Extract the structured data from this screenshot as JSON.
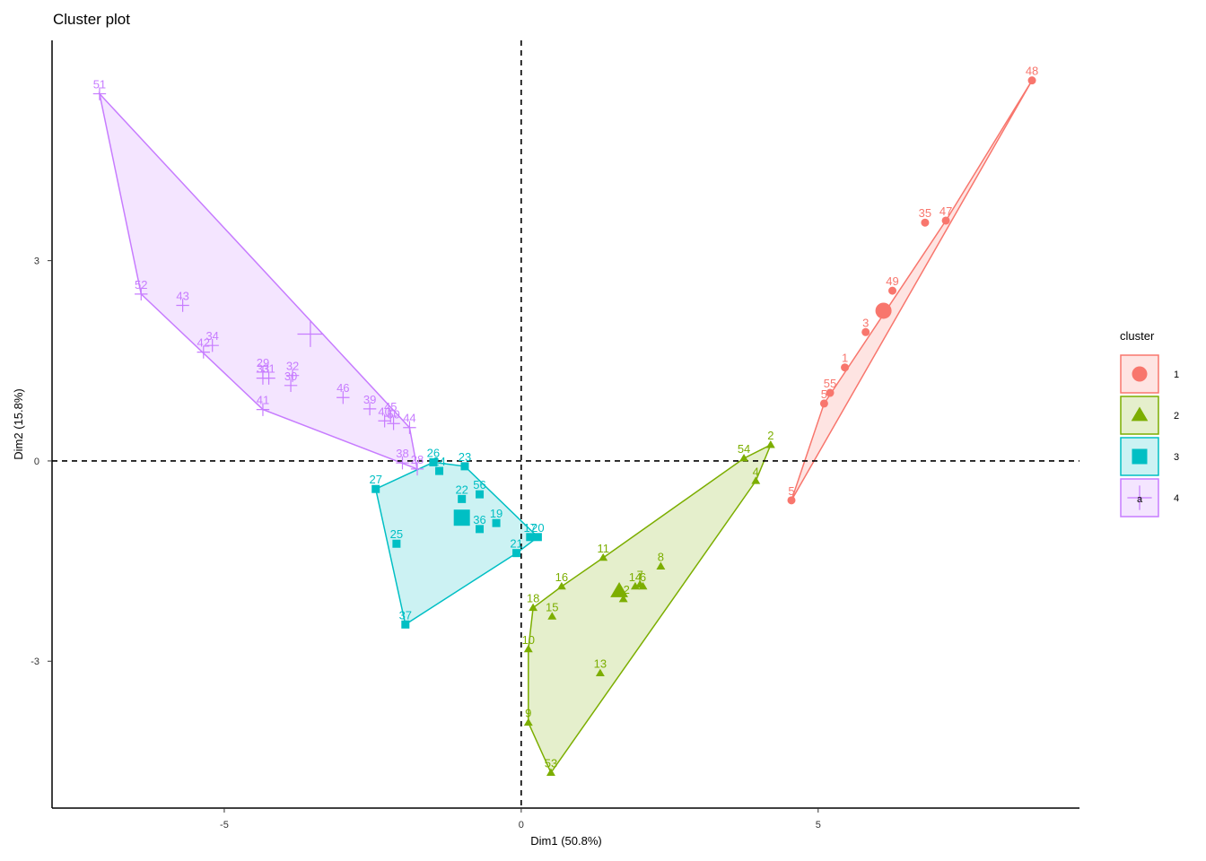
{
  "chart_data": {
    "type": "scatter",
    "title": "Cluster plot",
    "xlabel": "Dim1 (50.8%)",
    "ylabel": "Dim2 (15.8%)",
    "xlim": [
      -7.9,
      9.4
    ],
    "ylim": [
      -5.2,
      6.3
    ],
    "x_ticks": [
      -5,
      0,
      5
    ],
    "y_ticks": [
      -3,
      0,
      3
    ],
    "x_tick_labels": [
      "-5",
      "0",
      "5"
    ],
    "y_tick_labels": [
      "-3",
      "0",
      "3"
    ],
    "reference_lines": {
      "x": 0,
      "y": 0,
      "style": "dashed"
    },
    "legend": {
      "title": "cluster",
      "position": "right"
    },
    "clusters": [
      {
        "name": "1",
        "color": "#F8766D",
        "fill": "#F8766D",
        "shape": "circle",
        "centroid": [
          6.1,
          2.25
        ],
        "points": [
          {
            "label": "48",
            "x": 8.6,
            "y": 5.7
          },
          {
            "label": "47",
            "x": 7.15,
            "y": 3.6
          },
          {
            "label": "35",
            "x": 6.8,
            "y": 3.57
          },
          {
            "label": "49",
            "x": 6.25,
            "y": 2.55
          },
          {
            "label": "3",
            "x": 5.8,
            "y": 1.93
          },
          {
            "label": "1",
            "x": 5.45,
            "y": 1.4
          },
          {
            "label": "55",
            "x": 5.2,
            "y": 1.02
          },
          {
            "label": "5",
            "x": 5.1,
            "y": 0.86
          },
          {
            "label": "5",
            "x": 4.55,
            "y": -0.59
          }
        ],
        "hull": [
          "48",
          "47",
          "5",
          "5",
          "48"
        ]
      },
      {
        "name": "2",
        "color": "#7CAE00",
        "fill": "#7CAE00",
        "shape": "triangle",
        "centroid": [
          1.65,
          -1.95
        ],
        "points": [
          {
            "label": "2",
            "x": 4.2,
            "y": 0.24
          },
          {
            "label": "54",
            "x": 3.75,
            "y": 0.04
          },
          {
            "label": "4",
            "x": 3.95,
            "y": -0.3
          },
          {
            "label": "11",
            "x": 1.38,
            "y": -1.45
          },
          {
            "label": "8",
            "x": 2.35,
            "y": -1.58
          },
          {
            "label": "16",
            "x": 0.68,
            "y": -1.88
          },
          {
            "label": "14",
            "x": 1.92,
            "y": -1.88
          },
          {
            "label": "7",
            "x": 2.0,
            "y": -1.85
          },
          {
            "label": "6",
            "x": 2.05,
            "y": -1.88
          },
          {
            "label": "12",
            "x": 1.72,
            "y": -2.07
          },
          {
            "label": "18",
            "x": 0.2,
            "y": -2.2
          },
          {
            "label": "15",
            "x": 0.52,
            "y": -2.33
          },
          {
            "label": "10",
            "x": 0.12,
            "y": -2.82
          },
          {
            "label": "13",
            "x": 1.33,
            "y": -3.18
          },
          {
            "label": "9",
            "x": 0.12,
            "y": -3.92
          },
          {
            "label": "53",
            "x": 0.5,
            "y": -4.67
          }
        ],
        "hull": [
          "2",
          "54",
          "11",
          "16",
          "18",
          "10",
          "9",
          "53",
          "4"
        ]
      },
      {
        "name": "3",
        "color": "#00BFC4",
        "fill": "#00BFC4",
        "shape": "square",
        "centroid": [
          -1.0,
          -0.85
        ],
        "points": [
          {
            "label": "26",
            "x": -1.48,
            "y": -0.02
          },
          {
            "label": "24",
            "x": -1.38,
            "y": -0.15
          },
          {
            "label": "23",
            "x": -0.95,
            "y": -0.08
          },
          {
            "label": "27",
            "x": -2.45,
            "y": -0.42
          },
          {
            "label": "22",
            "x": -1.0,
            "y": -0.57
          },
          {
            "label": "56",
            "x": -0.7,
            "y": -0.5
          },
          {
            "label": "19",
            "x": -0.42,
            "y": -0.93
          },
          {
            "label": "36",
            "x": -0.7,
            "y": -1.02
          },
          {
            "label": "17",
            "x": 0.15,
            "y": -1.14
          },
          {
            "label": "20",
            "x": 0.28,
            "y": -1.14
          },
          {
            "label": "21",
            "x": -0.08,
            "y": -1.38
          },
          {
            "label": "25",
            "x": -2.1,
            "y": -1.24
          },
          {
            "label": "37",
            "x": -1.95,
            "y": -2.45
          }
        ],
        "hull": [
          "26",
          "23",
          "20",
          "21",
          "37",
          "27"
        ]
      },
      {
        "name": "4",
        "color": "#C77CFF",
        "fill": "#C77CFF",
        "shape": "plus",
        "centroid": [
          -3.55,
          1.9
        ],
        "points": [
          {
            "label": "51",
            "x": -7.1,
            "y": 5.5
          },
          {
            "label": "52",
            "x": -6.4,
            "y": 2.5
          },
          {
            "label": "43",
            "x": -5.7,
            "y": 2.33
          },
          {
            "label": "34",
            "x": -5.2,
            "y": 1.73
          },
          {
            "label": "42",
            "x": -5.35,
            "y": 1.63
          },
          {
            "label": "29",
            "x": -4.35,
            "y": 1.33
          },
          {
            "label": "33",
            "x": -4.35,
            "y": 1.24
          },
          {
            "label": "31",
            "x": -4.25,
            "y": 1.24
          },
          {
            "label": "32",
            "x": -3.85,
            "y": 1.28
          },
          {
            "label": "30",
            "x": -3.88,
            "y": 1.13
          },
          {
            "label": "46",
            "x": -3.0,
            "y": 0.95
          },
          {
            "label": "41",
            "x": -4.35,
            "y": 0.77
          },
          {
            "label": "39",
            "x": -2.55,
            "y": 0.78
          },
          {
            "label": "40",
            "x": -2.3,
            "y": 0.6
          },
          {
            "label": "45",
            "x": -2.2,
            "y": 0.67
          },
          {
            "label": "50",
            "x": -2.15,
            "y": 0.56
          },
          {
            "label": "44",
            "x": -1.88,
            "y": 0.5
          },
          {
            "label": "38",
            "x": -2.0,
            "y": -0.03
          },
          {
            "label": "28",
            "x": -1.75,
            "y": -0.12
          }
        ],
        "hull": [
          "51",
          "44",
          "28",
          "41",
          "52"
        ]
      }
    ]
  }
}
